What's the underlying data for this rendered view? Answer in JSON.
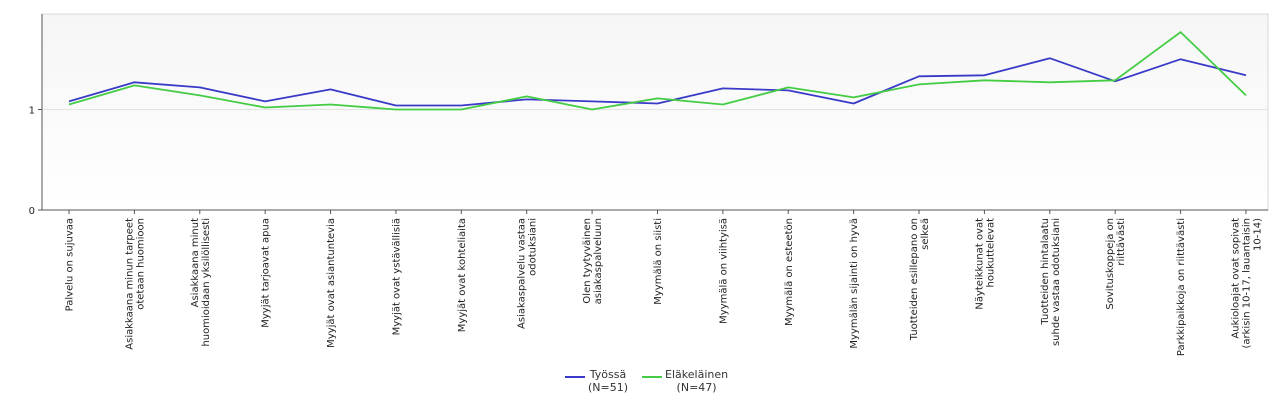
{
  "chart_data": {
    "type": "line",
    "categories": [
      "Palvelu on sujuvaa",
      "Asiakkaana minun tarpeet otetaan huomioon",
      "Asiakkaana minut huomioidaan yksilöllisesti",
      "Myyjät tarjoavat apua",
      "Myyjät ovat asiantuntevia",
      "Myyjät ovat ystävällisiä",
      "Myyjät ovat kohteliaita",
      "Asiakaspalvelu vastaa odotuksiani",
      "Olen tyytyväinen asiakaspalveluun",
      "Myymälä on siisti",
      "Myymälä on viihtyisä",
      "Myymälä on esteetön",
      "Myymälän sijainti on hyvä",
      "Tuotteiden esillepano on selkeä",
      "Näyteikkunat ovat houkuttelevat",
      "Tuotteiden hintalaatu suhde vastaa odotuksiani",
      "Sovituskoppeja on riittävästi",
      "Parkkipaikkoja on riittävästi",
      "Aukioloajat ovat sopivat (arkisin 10-17, lauantaisin 10-14)"
    ],
    "category_lines": [
      [
        "Palvelu on sujuvaa"
      ],
      [
        "Asiakkaana minun tarpeet",
        "otetaan huomioon"
      ],
      [
        "Asiakkaana minut",
        "huomioidaan yksilöllisesti"
      ],
      [
        "Myyjät tarjoavat apua"
      ],
      [
        "Myyjät ovat asiantuntevia"
      ],
      [
        "Myyjät ovat ystävällisiä"
      ],
      [
        "Myyjät ovat kohteliaita"
      ],
      [
        "Asiakaspalvelu vastaa",
        "odotuksiani"
      ],
      [
        "Olen tyytyväinen",
        "asiakaspalveluun"
      ],
      [
        "Myymälä on siisti"
      ],
      [
        "Myymälä on viihtyisä"
      ],
      [
        "Myymälä on esteetön"
      ],
      [
        "Myymälän sijainti on hyvä"
      ],
      [
        "Tuotteiden esillepano on",
        "selkeä"
      ],
      [
        "Näyteikkunat ovat",
        "houkuttelevat"
      ],
      [
        "Tuotteiden hintalaatu",
        "suhde vastaa odotuksiani"
      ],
      [
        "Sovituskoppeja on",
        "riittävästi"
      ],
      [
        "Parkkipaikkoja on riittävästi"
      ],
      [
        "Aukioloajat ovat sopivat",
        "(arkisin 10-17, lauantaisin",
        "10-14)"
      ]
    ],
    "series": [
      {
        "name": "Työssä\n(N=51)",
        "color": "#3a3ac8",
        "values": [
          1.08,
          1.27,
          1.22,
          1.08,
          1.2,
          1.04,
          1.04,
          1.1,
          1.08,
          1.06,
          1.21,
          1.19,
          1.06,
          1.33,
          1.34,
          1.51,
          1.28,
          1.5,
          1.34
        ]
      },
      {
        "name": "Eläkeläinen\n(N=47)",
        "color": "#44cc44",
        "values": [
          1.05,
          1.24,
          1.14,
          1.02,
          1.05,
          1.0,
          1.0,
          1.13,
          1.0,
          1.11,
          1.05,
          1.22,
          1.12,
          1.25,
          1.29,
          1.27,
          1.29,
          1.77,
          1.14
        ]
      }
    ],
    "yticks": [
      0,
      1
    ],
    "ylim": [
      0,
      1.95
    ],
    "grid": true,
    "legend_position": "bottom"
  },
  "legend": [
    {
      "line1": "Työssä",
      "line2": "(N=51)"
    },
    {
      "line1": "Eläkeläinen",
      "line2": "(N=47)"
    }
  ]
}
